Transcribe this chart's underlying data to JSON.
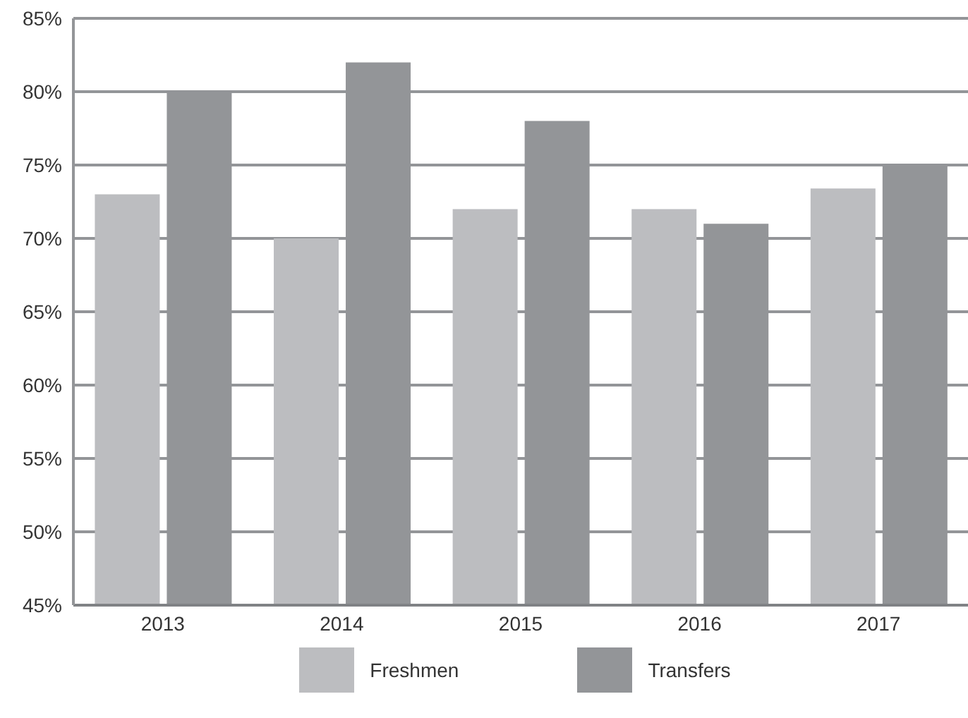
{
  "chart_data": {
    "type": "bar",
    "categories": [
      "2013",
      "2014",
      "2015",
      "2016",
      "2017"
    ],
    "series": [
      {
        "name": "Freshmen",
        "color": "#bcbdc0",
        "values": [
          73,
          70,
          72,
          72,
          73.4
        ]
      },
      {
        "name": "Transfers",
        "color": "#939598",
        "values": [
          80,
          82,
          78,
          71,
          75
        ]
      }
    ],
    "ylim": [
      45,
      85
    ],
    "yticks": [
      {
        "value": 45,
        "label": "45%"
      },
      {
        "value": 50,
        "label": "50%"
      },
      {
        "value": 55,
        "label": "55%"
      },
      {
        "value": 60,
        "label": "60%"
      },
      {
        "value": 65,
        "label": "65%"
      },
      {
        "value": 70,
        "label": "70%"
      },
      {
        "value": 75,
        "label": "75%"
      },
      {
        "value": 80,
        "label": "80%"
      },
      {
        "value": 85,
        "label": "85%"
      }
    ],
    "grid": "y",
    "legend": "bottom"
  }
}
